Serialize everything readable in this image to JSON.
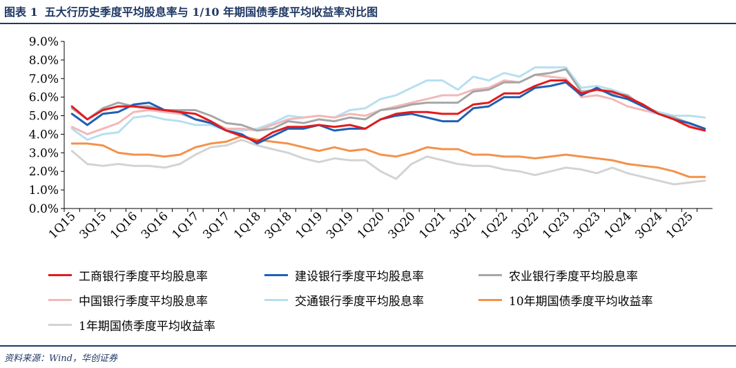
{
  "header": {
    "figure_label": "图表 1",
    "title": "五大行历史季度平均股息率与 1/10 年期国债季度平均收益率对比图"
  },
  "footer": {
    "source": "资料来源：Wind，华创证券"
  },
  "colors": {
    "accent": "#1f3864"
  },
  "chart_data": {
    "type": "line",
    "title": "",
    "xlabel": "",
    "ylabel": "",
    "ylim": [
      0,
      9
    ],
    "yticks": [
      "0.0%",
      "1.0%",
      "2.0%",
      "3.0%",
      "4.0%",
      "5.0%",
      "6.0%",
      "7.0%",
      "8.0%",
      "9.0%"
    ],
    "grid": false,
    "legend_position": "bottom",
    "x": [
      "1Q15",
      "2Q15",
      "3Q15",
      "4Q15",
      "1Q16",
      "2Q16",
      "3Q16",
      "4Q16",
      "1Q17",
      "2Q17",
      "3Q17",
      "4Q17",
      "1Q18",
      "2Q18",
      "3Q18",
      "4Q18",
      "1Q19",
      "2Q19",
      "3Q19",
      "4Q19",
      "1Q20",
      "2Q20",
      "3Q20",
      "4Q20",
      "1Q21",
      "2Q21",
      "3Q21",
      "4Q21",
      "1Q22",
      "2Q22",
      "3Q22",
      "4Q22",
      "1Q23",
      "2Q23",
      "3Q23",
      "4Q23",
      "1Q24",
      "2Q24",
      "3Q24",
      "4Q24",
      "1Q25",
      "2Q25"
    ],
    "xtick_labels": [
      "1Q15",
      "3Q15",
      "1Q16",
      "3Q16",
      "1Q17",
      "3Q17",
      "1Q18",
      "3Q18",
      "1Q19",
      "3Q19",
      "1Q20",
      "3Q20",
      "1Q21",
      "3Q21",
      "1Q22",
      "3Q22",
      "1Q23",
      "3Q23",
      "1Q24",
      "3Q24",
      "1Q25"
    ],
    "series": [
      {
        "name": "工商银行季度平均股息率",
        "color": "#e31a1c",
        "values": [
          5.5,
          4.8,
          5.3,
          5.5,
          5.5,
          5.4,
          5.3,
          5.2,
          5.1,
          4.7,
          4.2,
          3.9,
          3.6,
          4.1,
          4.4,
          4.4,
          4.5,
          4.4,
          4.5,
          4.3,
          4.8,
          5.1,
          5.2,
          5.2,
          5.1,
          5.1,
          5.6,
          5.7,
          6.2,
          6.2,
          6.6,
          6.9,
          6.9,
          6.2,
          6.4,
          6.3,
          6.0,
          5.6,
          5.1,
          4.8,
          4.4,
          4.2
        ]
      },
      {
        "name": "建设银行季度平均股息率",
        "color": "#1f5fb4",
        "values": [
          5.1,
          4.5,
          5.1,
          5.2,
          5.6,
          5.7,
          5.3,
          5.2,
          4.8,
          4.6,
          4.2,
          4.0,
          3.5,
          3.9,
          4.3,
          4.3,
          4.5,
          4.2,
          4.3,
          4.3,
          4.8,
          5.0,
          5.1,
          4.9,
          4.7,
          4.7,
          5.4,
          5.5,
          6.0,
          6.0,
          6.5,
          6.6,
          6.8,
          6.1,
          6.5,
          6.1,
          5.9,
          5.5,
          5.1,
          4.8,
          4.6,
          4.3
        ]
      },
      {
        "name": "农业银行季度平均股息率",
        "color": "#a6a6a6",
        "values": [
          5.4,
          4.8,
          5.4,
          5.7,
          5.5,
          5.5,
          5.3,
          5.3,
          5.3,
          5.0,
          4.6,
          4.5,
          4.2,
          4.3,
          4.7,
          4.6,
          4.8,
          4.7,
          4.9,
          4.8,
          5.3,
          5.4,
          5.6,
          5.7,
          5.7,
          5.7,
          6.3,
          6.4,
          6.8,
          6.8,
          7.2,
          7.3,
          7.5,
          6.3,
          6.4,
          6.2,
          6.1,
          5.5,
          5.1,
          4.9,
          4.6,
          4.3
        ]
      },
      {
        "name": "中国银行季度平均股息率",
        "color": "#f2b8b8",
        "values": [
          4.4,
          4.0,
          4.3,
          4.6,
          5.2,
          5.3,
          5.2,
          5.1,
          4.8,
          4.7,
          4.3,
          4.3,
          4.2,
          4.5,
          4.8,
          4.9,
          5.0,
          4.9,
          5.1,
          5.0,
          5.3,
          5.5,
          5.7,
          5.9,
          6.1,
          6.1,
          6.4,
          6.5,
          6.9,
          6.8,
          7.2,
          7.1,
          7.0,
          6.0,
          6.1,
          5.9,
          5.5,
          5.3,
          5.1,
          4.8,
          4.5,
          4.3
        ]
      },
      {
        "name": "交通银行季度平均股息率",
        "color": "#b7dff0",
        "values": [
          4.3,
          3.7,
          4.0,
          4.1,
          4.9,
          5.0,
          4.8,
          4.7,
          4.5,
          4.5,
          4.2,
          4.2,
          4.3,
          4.6,
          5.0,
          4.9,
          5.0,
          4.9,
          5.3,
          5.4,
          5.9,
          6.1,
          6.5,
          6.9,
          6.9,
          6.4,
          7.1,
          6.9,
          7.3,
          7.1,
          7.6,
          7.6,
          7.6,
          6.5,
          6.6,
          6.4,
          6.1,
          5.5,
          5.2,
          5.0,
          5.0,
          4.9
        ]
      },
      {
        "name": "10年期国债季度平均收益率",
        "color": "#f4914a",
        "values": [
          3.5,
          3.5,
          3.4,
          3.0,
          2.9,
          2.9,
          2.8,
          2.9,
          3.3,
          3.5,
          3.6,
          3.9,
          3.7,
          3.6,
          3.5,
          3.3,
          3.1,
          3.3,
          3.1,
          3.2,
          2.9,
          2.8,
          3.0,
          3.3,
          3.2,
          3.2,
          2.9,
          2.9,
          2.8,
          2.8,
          2.7,
          2.8,
          2.9,
          2.8,
          2.7,
          2.6,
          2.4,
          2.3,
          2.2,
          2.0,
          1.7,
          1.7
        ]
      },
      {
        "name": "1年期国债季度平均收益率",
        "color": "#d3d3d3",
        "values": [
          3.1,
          2.4,
          2.3,
          2.4,
          2.3,
          2.3,
          2.2,
          2.4,
          2.9,
          3.3,
          3.4,
          3.7,
          3.4,
          3.2,
          3.0,
          2.7,
          2.5,
          2.7,
          2.6,
          2.6,
          2.0,
          1.6,
          2.4,
          2.8,
          2.6,
          2.4,
          2.3,
          2.3,
          2.1,
          2.0,
          1.8,
          2.0,
          2.2,
          2.1,
          1.9,
          2.2,
          1.9,
          1.7,
          1.5,
          1.3,
          1.4,
          1.5
        ]
      }
    ]
  }
}
